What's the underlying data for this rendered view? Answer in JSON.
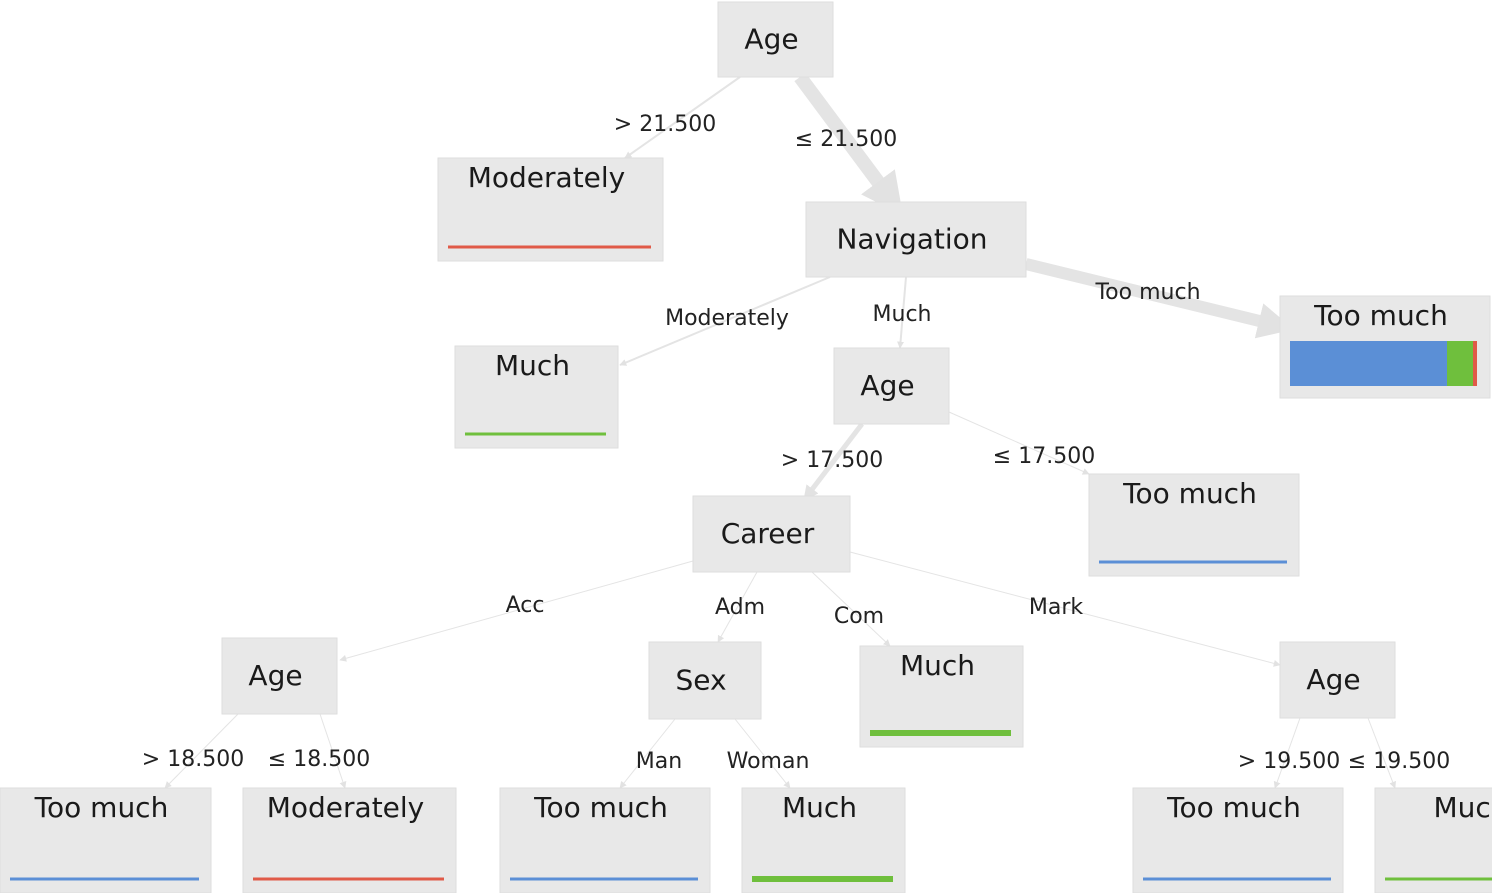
{
  "nodes": [
    {
      "label": "Age"
    },
    {
      "label": "Moderately"
    },
    {
      "label": "Navigation"
    },
    {
      "label": "Much"
    },
    {
      "label": "Age"
    },
    {
      "label": "Too much"
    },
    {
      "label": "Too much"
    },
    {
      "label": "Career"
    },
    {
      "label": "Age"
    },
    {
      "label": "Sex"
    },
    {
      "label": "Much"
    },
    {
      "label": "Age"
    },
    {
      "label": "Too much"
    },
    {
      "label": "Moderately"
    },
    {
      "label": "Too much"
    },
    {
      "label": "Much"
    },
    {
      "label": "Too much"
    },
    {
      "label": "Much"
    }
  ],
  "edges": [
    {
      "label": "> 21.500"
    },
    {
      "label": "≤ 21.500"
    },
    {
      "label": "Moderately"
    },
    {
      "label": "Much"
    },
    {
      "label": "Too much"
    },
    {
      "label": "> 17.500"
    },
    {
      "label": "≤ 17.500"
    },
    {
      "label": "Acc"
    },
    {
      "label": "Adm"
    },
    {
      "label": "Com"
    },
    {
      "label": "Mark"
    },
    {
      "label": "> 18.500"
    },
    {
      "label": "≤ 18.500"
    },
    {
      "label": "Man"
    },
    {
      "label": "Woman"
    },
    {
      "label": "> 19.500"
    },
    {
      "label": "≤ 19.500"
    }
  ]
}
